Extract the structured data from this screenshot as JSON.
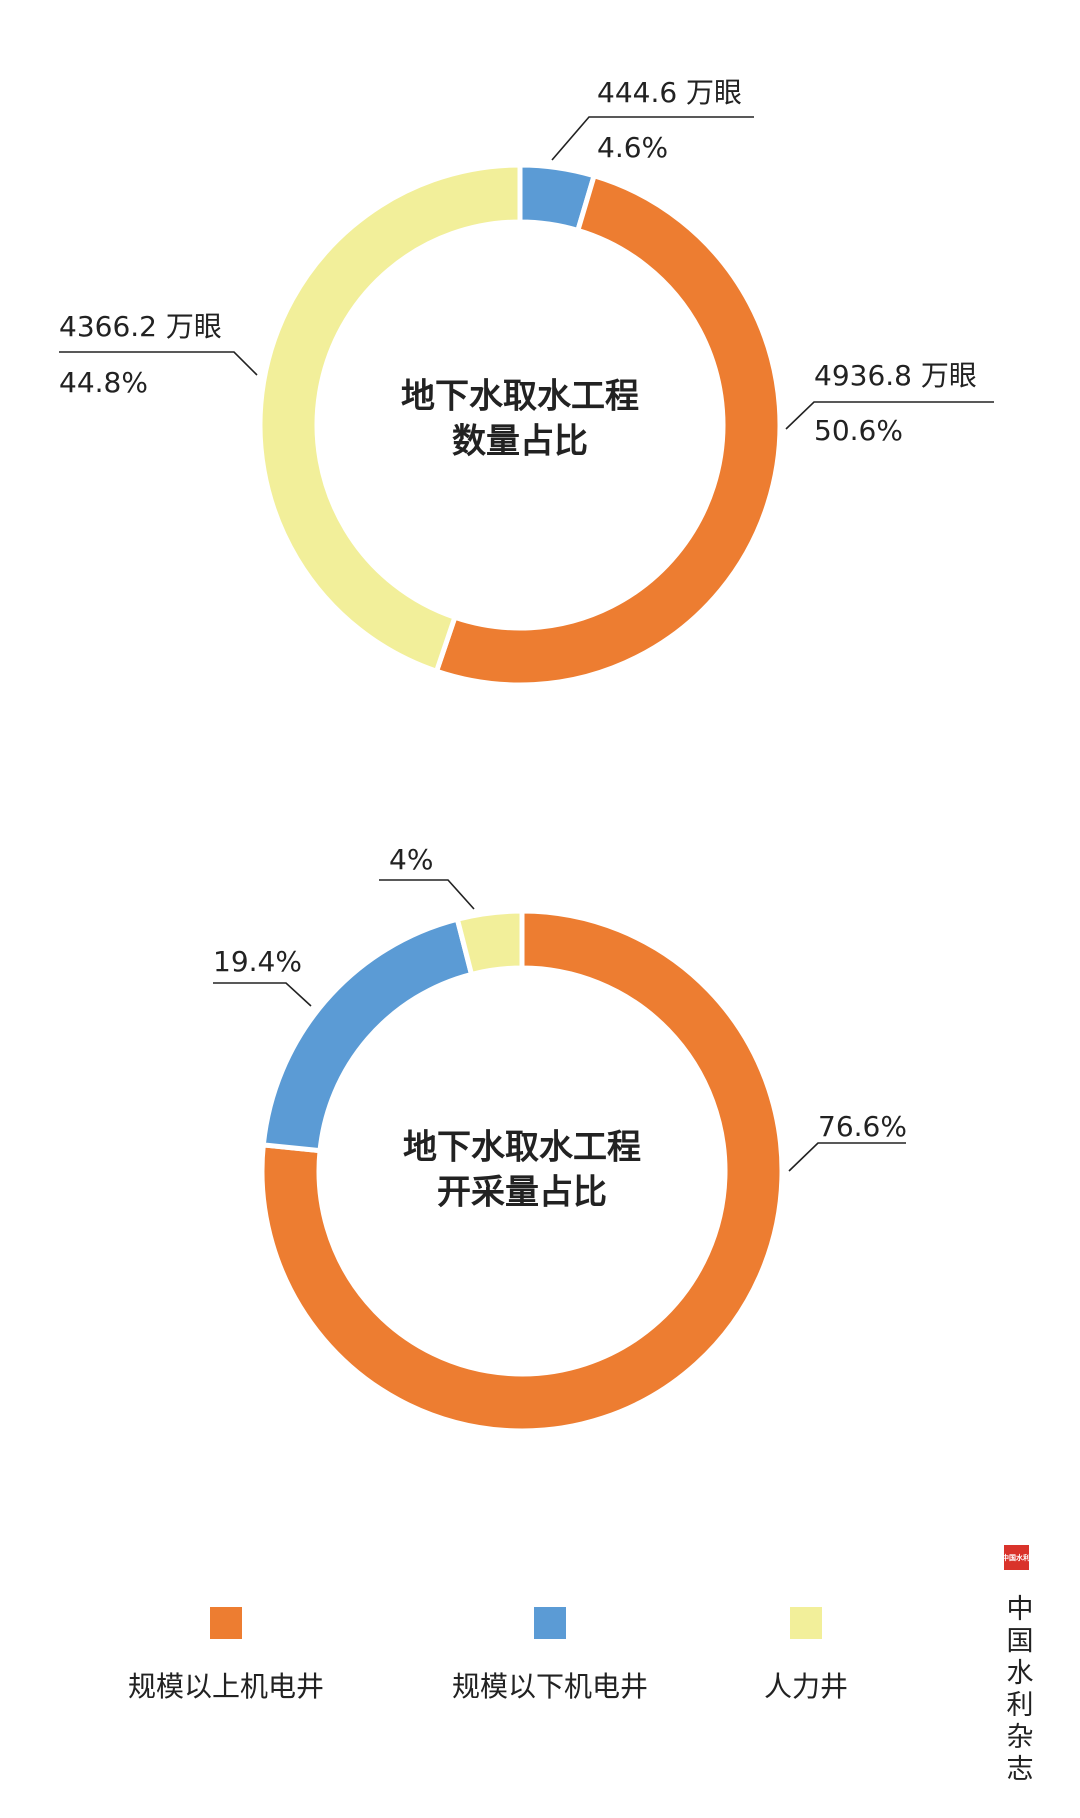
{
  "chart_data": [
    {
      "type": "donut",
      "title": [
        "地下水取水工程",
        "数量占比"
      ],
      "categories": [
        "规模以下机电井",
        "规模以上机电井",
        "人力井"
      ],
      "values": [
        4.6,
        50.6,
        44.8
      ],
      "value_labels": [
        "4.6%",
        "50.6%",
        "44.8%"
      ],
      "count_labels": [
        "444.6 万眼",
        "4936.8 万眼",
        "4366.2 万眼"
      ],
      "colors": [
        "#5b9bd5",
        "#ed7d31",
        "#f2ef9a"
      ]
    },
    {
      "type": "donut",
      "title": [
        "地下水取水工程",
        "开采量占比"
      ],
      "categories": [
        "规模以上机电井",
        "规模以下机电井",
        "人力井"
      ],
      "values": [
        76.6,
        19.4,
        4
      ],
      "value_labels": [
        "76.6%",
        "19.4%",
        "4%"
      ],
      "colors": [
        "#ed7d31",
        "#5b9bd5",
        "#f2ef9a"
      ]
    }
  ],
  "legend": [
    {
      "name": "规模以上机电井",
      "color": "#ed7d31"
    },
    {
      "name": "规模以下机电井",
      "color": "#5b9bd5"
    },
    {
      "name": "人力井",
      "color": "#f2ef9a"
    }
  ],
  "stamp": "中国水利",
  "watermark": "中国水利杂志"
}
